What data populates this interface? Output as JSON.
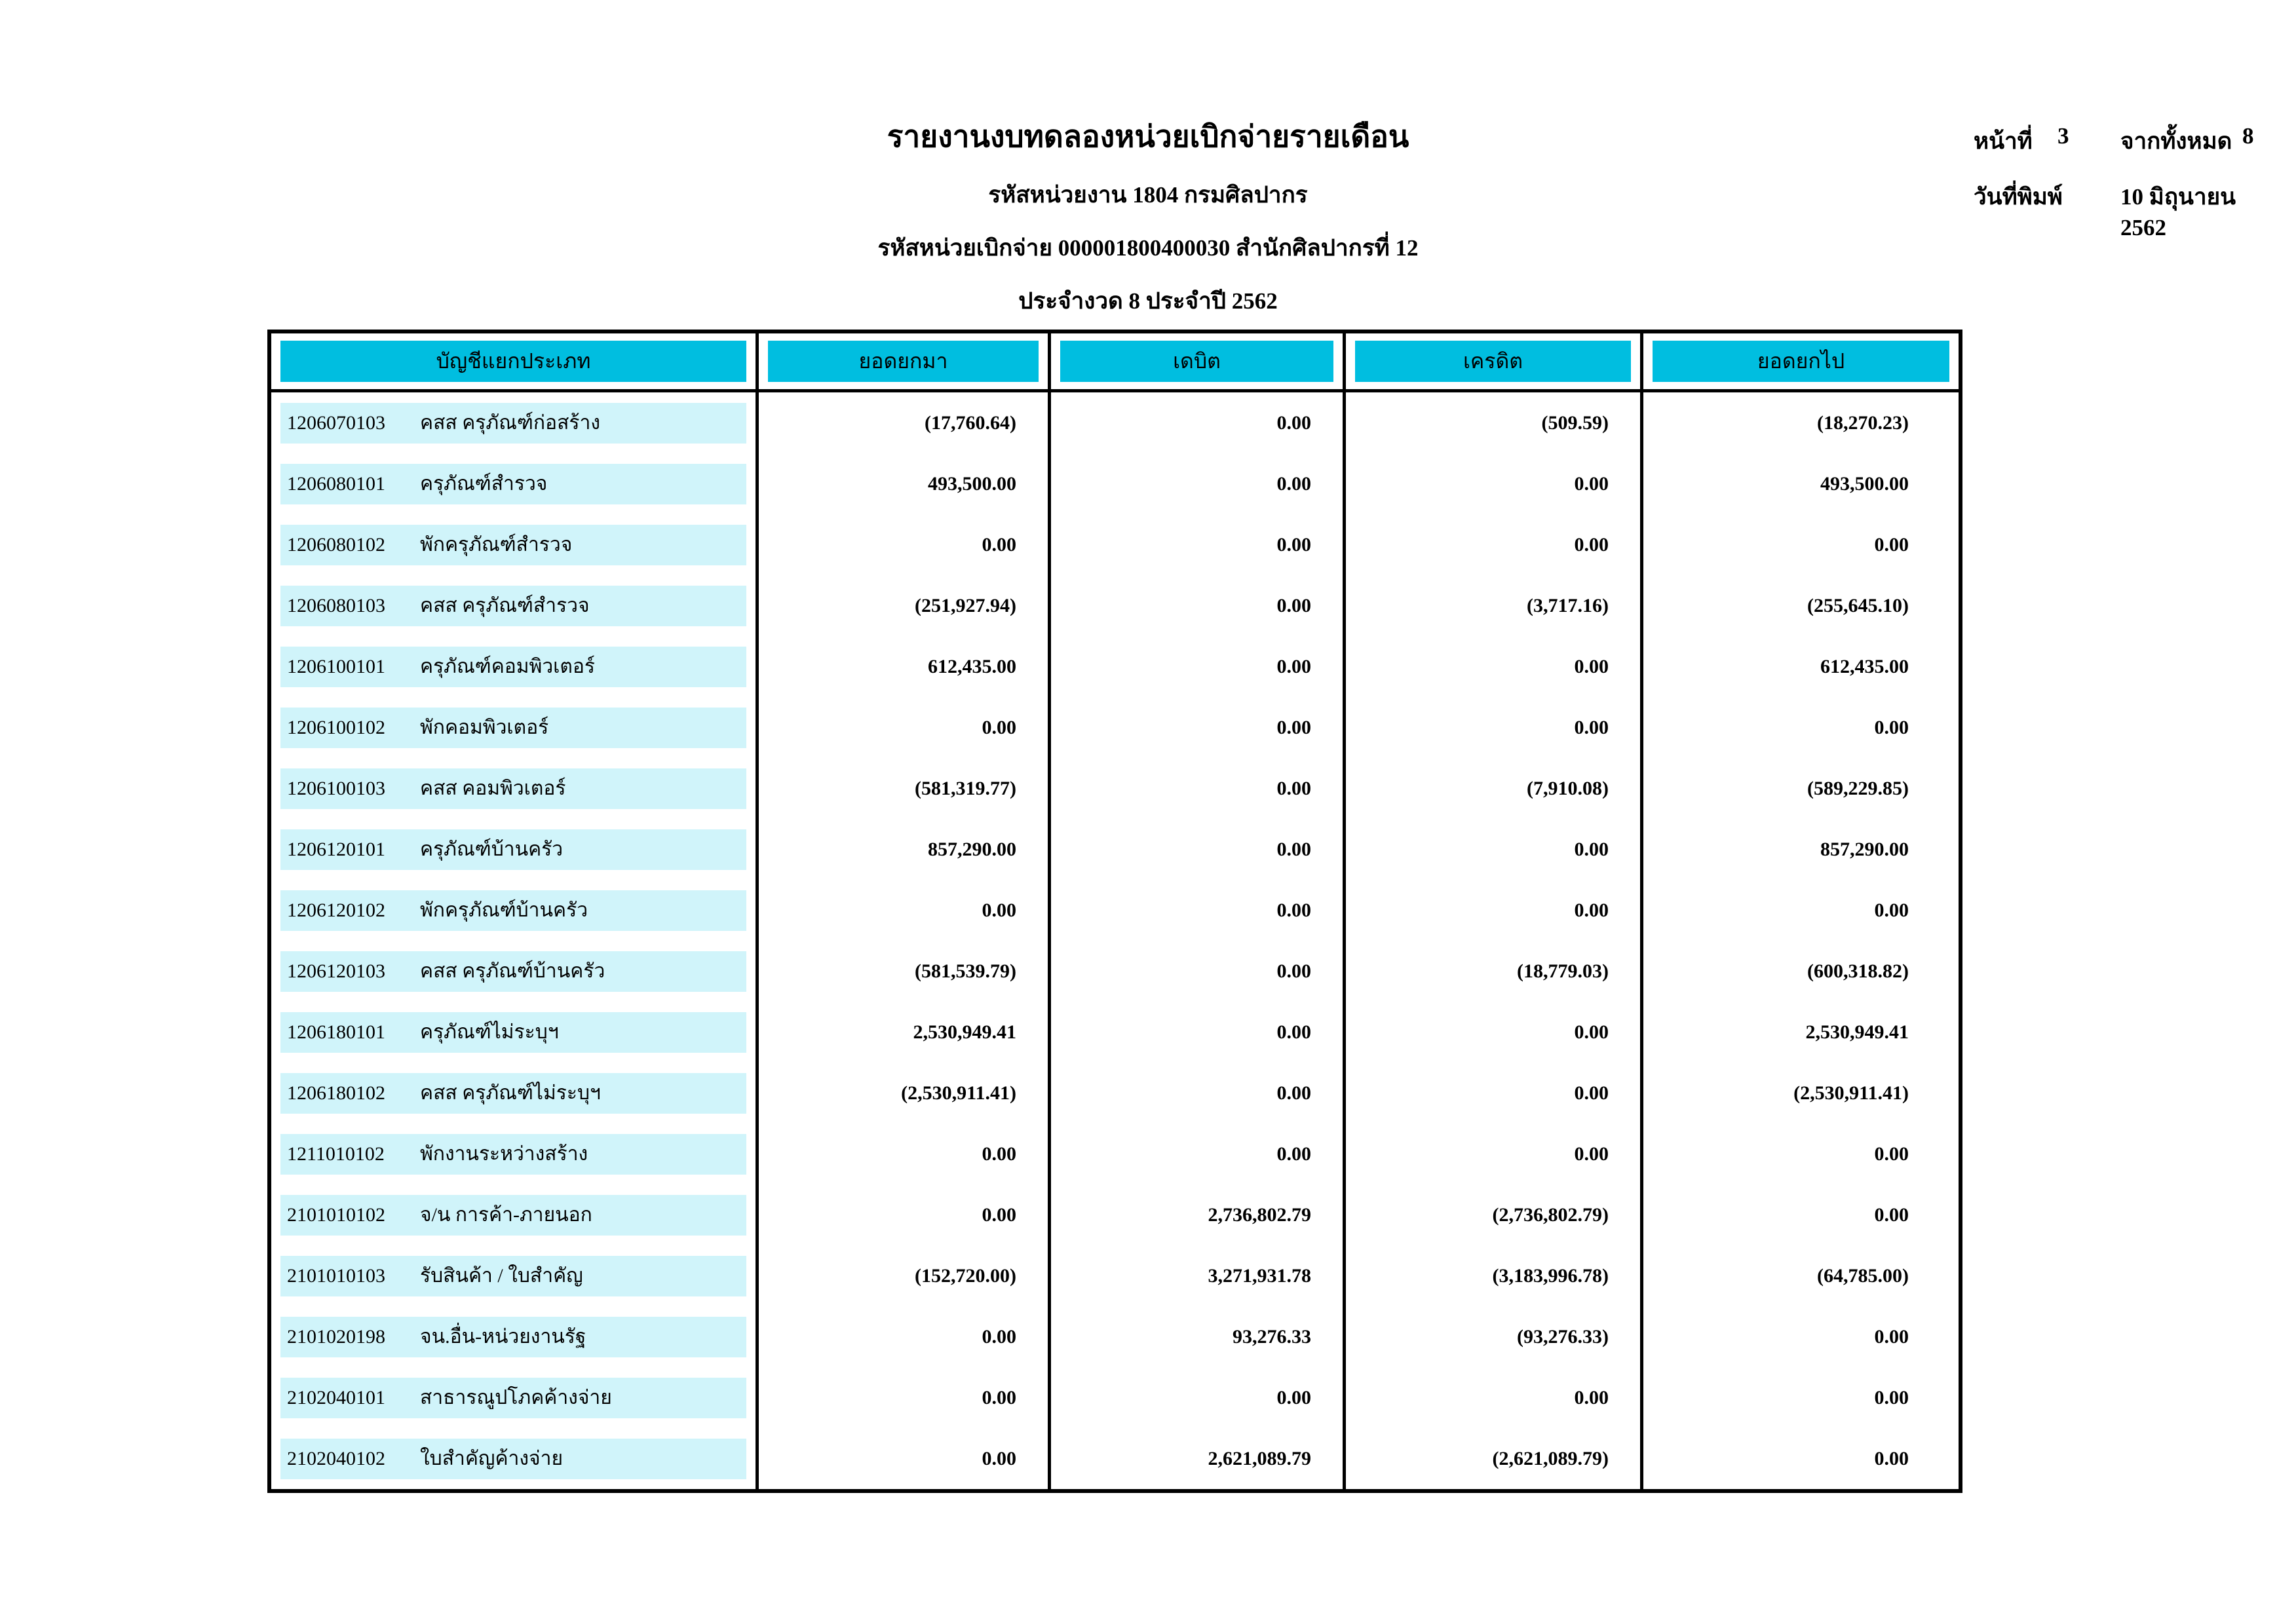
{
  "report": {
    "title": "รายงานงบทดลองหน่วยเบิกจ่ายรายเดือน",
    "org_line": "รหัสหน่วยงาน 1804 กรมศิลปากร",
    "unit_line": "รหัสหน่วยเบิกจ่าย 000001800400030 สำนักศิลปากรที่ 12",
    "period_line": "ประจำงวด 8 ประจำปี 2562",
    "page_label": "หน้าที่",
    "page_number": "3",
    "page_total_label": "จากทั้งหมด",
    "page_total": "8",
    "print_date_label": "วันที่พิมพ์",
    "print_date": "10 มิถุนายน 2562"
  },
  "colors": {
    "header_bg": "#00BEE0",
    "band_bg": "#D0F4FA"
  },
  "table": {
    "columns": [
      "บัญชีแยกประเภท",
      "ยอดยกมา",
      "เดบิต",
      "เครดิต",
      "ยอดยกไป"
    ],
    "rows": [
      {
        "code": "1206070103",
        "name": "คสส ครุภัณฑ์ก่อสร้าง",
        "opening": "(17,760.64)",
        "debit": "0.00",
        "credit": "(509.59)",
        "closing": "(18,270.23)"
      },
      {
        "code": "1206080101",
        "name": "ครุภัณฑ์สำรวจ",
        "opening": "493,500.00",
        "debit": "0.00",
        "credit": "0.00",
        "closing": "493,500.00"
      },
      {
        "code": "1206080102",
        "name": "พักครุภัณฑ์สำรวจ",
        "opening": "0.00",
        "debit": "0.00",
        "credit": "0.00",
        "closing": "0.00"
      },
      {
        "code": "1206080103",
        "name": "คสส ครุภัณฑ์สำรวจ",
        "opening": "(251,927.94)",
        "debit": "0.00",
        "credit": "(3,717.16)",
        "closing": "(255,645.10)"
      },
      {
        "code": "1206100101",
        "name": "ครุภัณฑ์คอมพิวเตอร์",
        "opening": "612,435.00",
        "debit": "0.00",
        "credit": "0.00",
        "closing": "612,435.00"
      },
      {
        "code": "1206100102",
        "name": "พักคอมพิวเตอร์",
        "opening": "0.00",
        "debit": "0.00",
        "credit": "0.00",
        "closing": "0.00"
      },
      {
        "code": "1206100103",
        "name": "คสส คอมพิวเตอร์",
        "opening": "(581,319.77)",
        "debit": "0.00",
        "credit": "(7,910.08)",
        "closing": "(589,229.85)"
      },
      {
        "code": "1206120101",
        "name": "ครุภัณฑ์บ้านครัว",
        "opening": "857,290.00",
        "debit": "0.00",
        "credit": "0.00",
        "closing": "857,290.00"
      },
      {
        "code": "1206120102",
        "name": "พักครุภัณฑ์บ้านครัว",
        "opening": "0.00",
        "debit": "0.00",
        "credit": "0.00",
        "closing": "0.00"
      },
      {
        "code": "1206120103",
        "name": "คสส ครุภัณฑ์บ้านครัว",
        "opening": "(581,539.79)",
        "debit": "0.00",
        "credit": "(18,779.03)",
        "closing": "(600,318.82)"
      },
      {
        "code": "1206180101",
        "name": "ครุภัณฑ์ไม่ระบุฯ",
        "opening": "2,530,949.41",
        "debit": "0.00",
        "credit": "0.00",
        "closing": "2,530,949.41"
      },
      {
        "code": "1206180102",
        "name": "คสส ครุภัณฑ์ไม่ระบุฯ",
        "opening": "(2,530,911.41)",
        "debit": "0.00",
        "credit": "0.00",
        "closing": "(2,530,911.41)"
      },
      {
        "code": "1211010102",
        "name": "พักงานระหว่างสร้าง",
        "opening": "0.00",
        "debit": "0.00",
        "credit": "0.00",
        "closing": "0.00"
      },
      {
        "code": "2101010102",
        "name": "จ/น การค้า-ภายนอก",
        "opening": "0.00",
        "debit": "2,736,802.79",
        "credit": "(2,736,802.79)",
        "closing": "0.00"
      },
      {
        "code": "2101010103",
        "name": "รับสินค้า / ใบสำคัญ",
        "opening": "(152,720.00)",
        "debit": "3,271,931.78",
        "credit": "(3,183,996.78)",
        "closing": "(64,785.00)"
      },
      {
        "code": "2101020198",
        "name": "จน.อื่น-หน่วยงานรัฐ",
        "opening": "0.00",
        "debit": "93,276.33",
        "credit": "(93,276.33)",
        "closing": "0.00"
      },
      {
        "code": "2102040101",
        "name": "สาธารณูปโภคค้างจ่าย",
        "opening": "0.00",
        "debit": "0.00",
        "credit": "0.00",
        "closing": "0.00"
      },
      {
        "code": "2102040102",
        "name": "ใบสำคัญค้างจ่าย",
        "opening": "0.00",
        "debit": "2,621,089.79",
        "credit": "(2,621,089.79)",
        "closing": "0.00"
      }
    ]
  }
}
